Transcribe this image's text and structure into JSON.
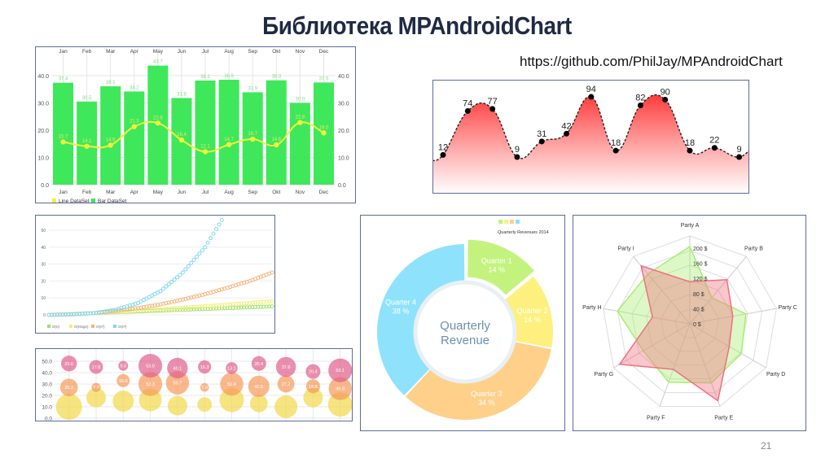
{
  "slide": {
    "title": "Библиотека MPAndroidChart",
    "url": "https://github.com/PhilJay/MPAndroidChart",
    "page_number": "21"
  },
  "chart_data": [
    {
      "id": "combined",
      "type": "bar",
      "categories": [
        "Jan",
        "Feb",
        "Mar",
        "Apr",
        "May",
        "Jun",
        "Jul",
        "Aug",
        "Sep",
        "Okt",
        "Nov",
        "Dec"
      ],
      "ylim": [
        0,
        45
      ],
      "yticks": [
        "0.0",
        "10.0",
        "20.0",
        "30.0",
        "40.0"
      ],
      "grid": true,
      "legend": "bottom-left",
      "series": [
        {
          "name": "Line DataSet",
          "kind": "line",
          "color": "#f0f03c",
          "values": [
            15.7,
            14.1,
            14.5,
            21.3,
            22.6,
            16.4,
            12.1,
            14.7,
            16.7,
            14.6,
            22.8,
            19.0
          ]
        },
        {
          "name": "Bar DataSet",
          "kind": "bar",
          "color": "#3ee85a",
          "values": [
            37.4,
            30.5,
            36.1,
            34.2,
            43.7,
            31.8,
            38.2,
            38.5,
            33.9,
            38.3,
            30.0,
            37.5
          ]
        }
      ]
    },
    {
      "id": "cubic-area",
      "type": "area",
      "values": [
        12,
        74,
        77,
        9,
        31,
        42,
        94,
        18,
        82,
        90,
        18,
        22,
        9
      ],
      "color": "#ff4d4d",
      "line_style": "dashed",
      "grid": false
    },
    {
      "id": "complexity",
      "type": "scatter",
      "yticks": [
        "0",
        "10",
        "20",
        "30",
        "40",
        "50"
      ],
      "ylim": [
        0,
        55
      ],
      "xlim": [
        0,
        100
      ],
      "legend": "bottom-left",
      "series": [
        {
          "name": "O(n)",
          "color": "#9ee06a",
          "x": [
            0,
            10,
            20,
            30,
            40,
            50,
            60,
            70,
            80,
            90,
            100
          ],
          "y": [
            0,
            0.5,
            1,
            1.5,
            2,
            2.5,
            3,
            3.5,
            4,
            4.5,
            5
          ]
        },
        {
          "name": "O(nlogn)",
          "color": "#f2ee7a",
          "x": [
            0,
            10,
            20,
            30,
            40,
            50,
            60,
            70,
            80,
            90,
            100
          ],
          "y": [
            0,
            0.4,
            1,
            1.7,
            2.5,
            3.3,
            4.2,
            5.1,
            6,
            7,
            8
          ]
        },
        {
          "name": "O(n²)",
          "color": "#f7b27a",
          "x": [
            0,
            10,
            20,
            30,
            40,
            50,
            60,
            70,
            80,
            90,
            100
          ],
          "y": [
            0,
            0.3,
            1,
            2.2,
            4,
            6.2,
            9,
            12.2,
            16,
            20,
            25
          ]
        },
        {
          "name": "O(n³)",
          "color": "#7fd9f0",
          "x": [
            0,
            10,
            20,
            30,
            40,
            50,
            60,
            70,
            77
          ],
          "y": [
            0,
            0.2,
            1,
            3,
            7,
            14,
            25,
            40,
            55
          ]
        }
      ]
    },
    {
      "id": "bubbles",
      "type": "scatter",
      "yticks": [
        "0.0",
        "10.0",
        "20.0",
        "30.0",
        "40.0",
        "50.0"
      ],
      "ylim": [
        0,
        55
      ],
      "grid": true,
      "series": [
        {
          "color": "#f2d84a",
          "y": [
            10,
            18,
            15,
            16,
            11,
            12,
            16,
            13,
            10,
            18,
            12
          ],
          "size": [
            64,
            36,
            42,
            49,
            36,
            20,
            56,
            30,
            49,
            36,
            56
          ],
          "labels": []
        },
        {
          "color": "#f79a5a",
          "y": [
            27,
            27,
            33,
            30,
            31,
            27,
            30,
            28,
            30,
            28,
            26
          ],
          "size": [
            29.3,
            7.7,
            16.0,
            53.3,
            50.7,
            7.0,
            50.4,
            42.5,
            27.2,
            18.6,
            49.8
          ],
          "labels": [
            "29.3",
            "7.7",
            "16.0",
            "53.3",
            "50.7",
            "7.0",
            "50.4",
            "42.5",
            "27.2",
            "18.6",
            "49.8"
          ]
        },
        {
          "color": "#e0608a",
          "y": [
            48,
            45,
            46,
            46,
            44,
            45,
            44,
            48,
            45,
            41,
            42
          ],
          "size": [
            23.6,
            17.8,
            9.0,
            53.0,
            40.1,
            16.3,
            13.1,
            20.4,
            37.6,
            20.4,
            53.1
          ],
          "labels": [
            "23.6",
            "17.8",
            "9.0",
            "53.0",
            "40.1",
            "16.3",
            "13.1",
            "20.4",
            "37.6",
            "20.4",
            "53.1"
          ]
        }
      ]
    },
    {
      "id": "donut",
      "type": "pie",
      "center_text": [
        "Quarterly",
        "Revenue"
      ],
      "legend_title": "Quarterly Revenues 2014",
      "legend": "top-right",
      "slices": [
        {
          "label": "Quarter 1",
          "value": 14,
          "pct_label": "14 %",
          "color": "#c3f37e"
        },
        {
          "label": "Quarter 2",
          "value": 14,
          "pct_label": "14 %",
          "color": "#fdf07e"
        },
        {
          "label": "Quarter 3",
          "value": 34,
          "pct_label": "34 %",
          "color": "#ffd08a"
        },
        {
          "label": "Quarter 4",
          "value": 38,
          "pct_label": "38 %",
          "color": "#8fe2fb"
        }
      ]
    },
    {
      "id": "radar",
      "type": "radar",
      "axes": [
        "Party A",
        "Party B",
        "Party C",
        "Party D",
        "Party E",
        "Party F",
        "Party G",
        "Party H",
        "Party I"
      ],
      "ticks": [
        "0 $",
        "40 $",
        "80 $",
        "120 $",
        "160 $",
        "200 $"
      ],
      "rmax": 232,
      "series": [
        {
          "color": "#a8ee72",
          "values": [
            204,
            90,
            150,
            157,
            166,
            164,
            142,
            194,
            172
          ]
        },
        {
          "color": "#f07080",
          "values": [
            111,
            152,
            115,
            120,
            216,
            128,
            214,
            100,
            200
          ]
        }
      ]
    }
  ]
}
